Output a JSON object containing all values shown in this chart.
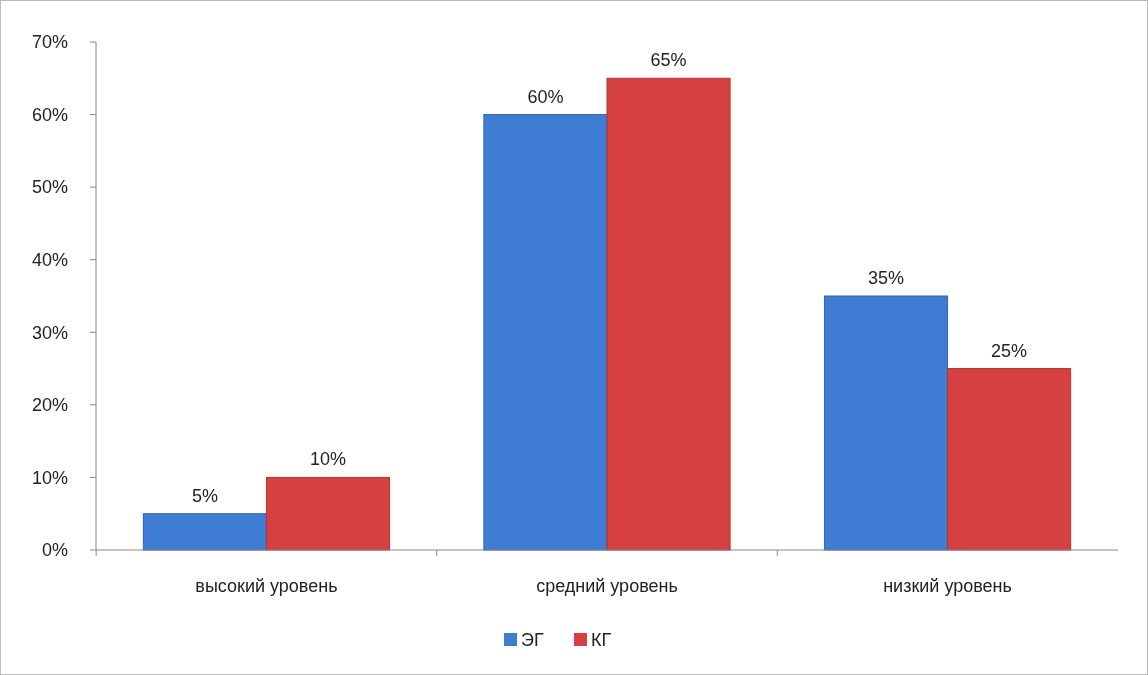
{
  "chart_data": {
    "type": "bar",
    "categories": [
      "высокий уровень",
      "средний уровень",
      "низкий уровень"
    ],
    "series": [
      {
        "name": "ЭГ",
        "color": "#3e7dd3",
        "values": [
          5,
          60,
          35
        ],
        "value_labels": [
          "5%",
          "60%",
          "35%"
        ]
      },
      {
        "name": "КГ",
        "color": "#d64040",
        "values": [
          10,
          65,
          25
        ],
        "value_labels": [
          "10%",
          "65%",
          "25%"
        ]
      }
    ],
    "ylim": [
      0,
      70
    ],
    "yticks": [
      {
        "value": 0,
        "label": "0%"
      },
      {
        "value": 10,
        "label": "10%"
      },
      {
        "value": 20,
        "label": "20%"
      },
      {
        "value": 30,
        "label": "30%"
      },
      {
        "value": 40,
        "label": "40%"
      },
      {
        "value": 50,
        "label": "50%"
      },
      {
        "value": 60,
        "label": "60%"
      },
      {
        "value": 70,
        "label": "70%"
      }
    ],
    "grid": false,
    "legend": "bottom"
  }
}
